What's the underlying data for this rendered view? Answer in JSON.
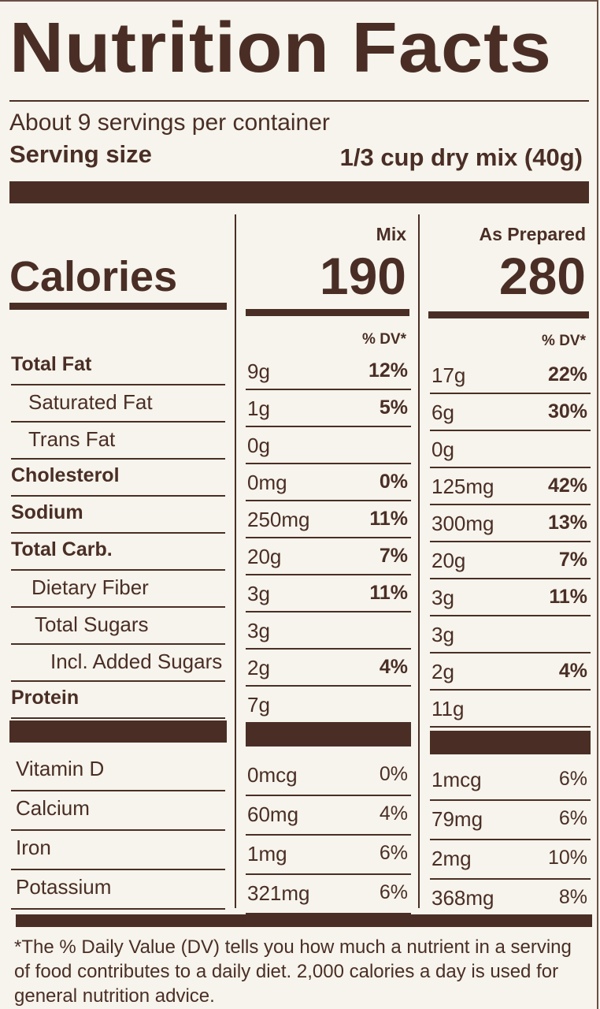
{
  "title": "Nutrition Facts",
  "servings": "About 9 servings per container",
  "serving_size_label": "Serving size",
  "serving_size": "1/3 cup dry mix (40g)",
  "columns": [
    "Mix",
    "As Prepared"
  ],
  "calories_label": "Calories",
  "calories": [
    "190",
    "280"
  ],
  "dv_header": [
    "% DV*",
    "% DV*"
  ],
  "nutrients": [
    {
      "name": "Total Fat",
      "mix": [
        "9g",
        "12%"
      ],
      "prepared": [
        "17g",
        "22%"
      ]
    },
    {
      "name": "Saturated Fat",
      "mix": [
        "1g",
        "5%"
      ],
      "prepared": [
        "6g",
        "30%"
      ]
    },
    {
      "name": "Trans Fat",
      "mix": [
        "0g"
      ],
      "prepared": [
        "0g"
      ]
    },
    {
      "name": "Cholesterol",
      "mix": [
        "0mg",
        "0%"
      ],
      "prepared": [
        "125mg",
        "42%"
      ]
    },
    {
      "name": "Sodium",
      "mix": [
        "250mg",
        "11%"
      ],
      "prepared": [
        "300mg",
        "13%"
      ]
    },
    {
      "name": "Total Carb.",
      "mix": [
        "20g",
        "7%"
      ],
      "prepared": [
        "20g",
        "7%"
      ]
    },
    {
      "name": "Dietary Fiber",
      "mix": [
        "3g",
        "11%"
      ],
      "prepared": [
        "3g",
        "11%"
      ]
    },
    {
      "name": "Total Sugars",
      "mix": [
        "3g"
      ],
      "prepared": [
        "3g"
      ]
    },
    {
      "name": "Incl. Added Sugars",
      "mix": [
        "2g",
        "4%"
      ],
      "prepared": [
        "2g",
        "4%"
      ]
    },
    {
      "name": "Protein",
      "mix": [
        "7g"
      ],
      "prepared": [
        "11g"
      ]
    }
  ],
  "vitamins": [
    {
      "name": "Vitamin D",
      "mix": [
        "0mcg",
        "0%"
      ],
      "prepared": [
        "1mcg",
        "6%"
      ]
    },
    {
      "name": "Calcium",
      "mix": [
        "60mg",
        "4%"
      ],
      "prepared": [
        "79mg",
        "6%"
      ]
    },
    {
      "name": "Iron",
      "mix": [
        "1mg",
        "6%"
      ],
      "prepared": [
        "2mg",
        "10%"
      ]
    },
    {
      "name": "Potassium",
      "mix": [
        "321mg",
        "6%"
      ],
      "prepared": [
        "368mg",
        "8%"
      ]
    }
  ],
  "footnote": "*The % Daily Value (DV) tells you how much a nutrient in a serving of food contributes to a daily diet. 2,000 calories a day is used for general nutrition advice."
}
